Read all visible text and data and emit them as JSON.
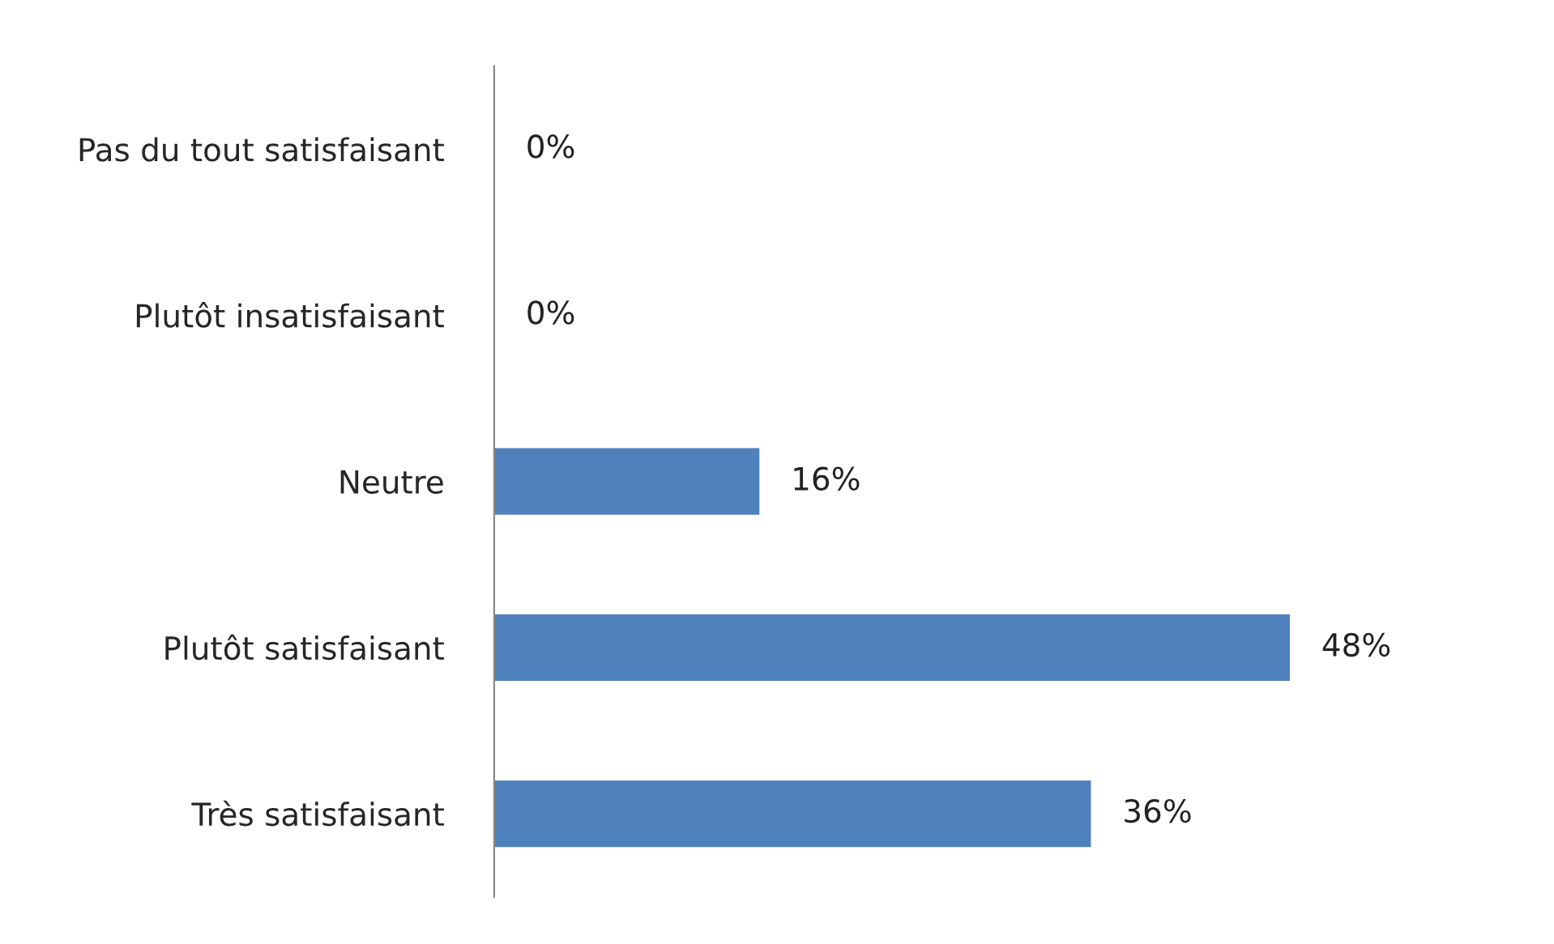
{
  "chart_data": {
    "type": "bar",
    "orientation": "horizontal",
    "categories": [
      "Pas du tout satisfaisant",
      "Plutôt insatisfaisant",
      "Neutre",
      "Plutôt satisfaisant",
      "Très satisfaisant"
    ],
    "values": [
      0,
      0,
      16,
      48,
      36
    ],
    "value_labels": [
      "0%",
      "0%",
      "16%",
      "48%",
      "36%"
    ],
    "color": "#4f81bd",
    "grid": false,
    "legend": false
  }
}
